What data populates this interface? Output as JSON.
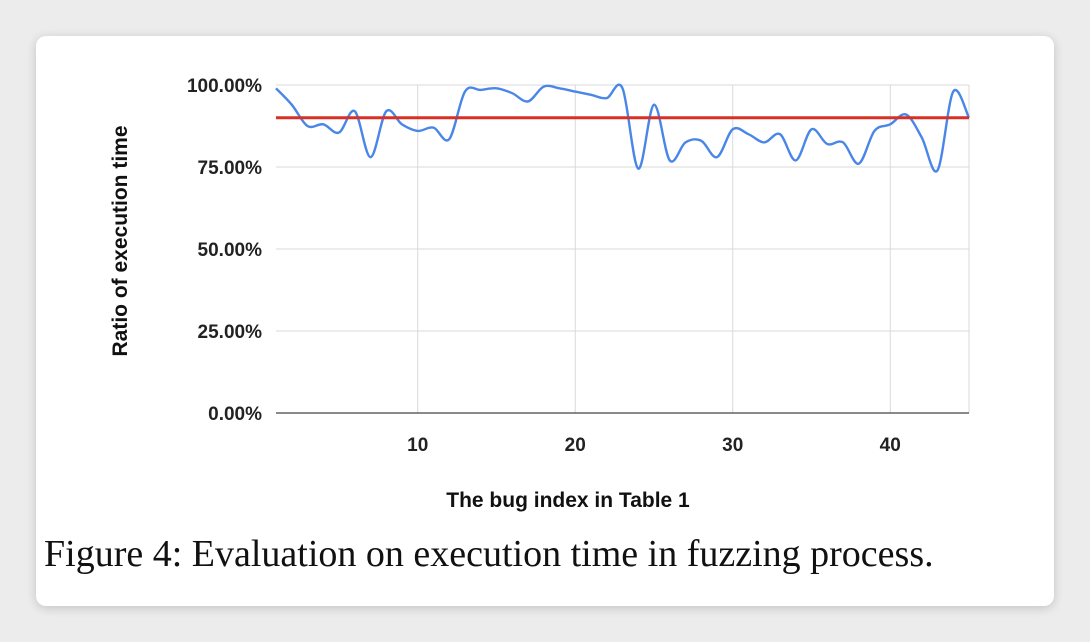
{
  "figure": {
    "caption": "Figure 4: Evaluation on execution time in fuzzing process."
  },
  "chart_data": {
    "type": "line",
    "title": "",
    "xlabel": "The bug index in Table 1",
    "ylabel": "Ratio of execution time",
    "xlim": [
      1,
      45
    ],
    "ylim": [
      0,
      100
    ],
    "x_ticks": [
      10,
      20,
      30,
      40
    ],
    "x_tick_labels": [
      "10",
      "20",
      "30",
      "40"
    ],
    "y_ticks": [
      0,
      25,
      50,
      75,
      100
    ],
    "y_tick_labels": [
      "0.00%",
      "25.00%",
      "50.00%",
      "75.00%",
      "100.00%"
    ],
    "grid": true,
    "legend": "none",
    "series": [
      {
        "color": "#4a86e8",
        "x": [
          1,
          2,
          3,
          4,
          5,
          6,
          7,
          8,
          9,
          10,
          11,
          12,
          13,
          14,
          15,
          16,
          17,
          18,
          19,
          20,
          21,
          22,
          23,
          24,
          25,
          26,
          27,
          28,
          29,
          30,
          31,
          32,
          33,
          34,
          35,
          36,
          37,
          38,
          39,
          40,
          41,
          42,
          43,
          44,
          45
        ],
        "values": [
          99,
          94,
          87.5,
          88,
          85.5,
          92,
          78,
          92,
          88,
          86,
          87,
          83.5,
          98,
          98.5,
          99,
          97.5,
          95,
          99.5,
          99,
          98,
          97,
          96,
          99,
          74.5,
          94,
          77,
          82.5,
          83,
          78,
          86.5,
          85,
          82.5,
          85,
          77,
          86.5,
          82,
          82.5,
          76,
          86,
          88,
          91,
          84,
          74,
          98,
          90
        ]
      }
    ],
    "reference_lines": [
      {
        "value": 90,
        "color": "#d93025"
      }
    ]
  }
}
